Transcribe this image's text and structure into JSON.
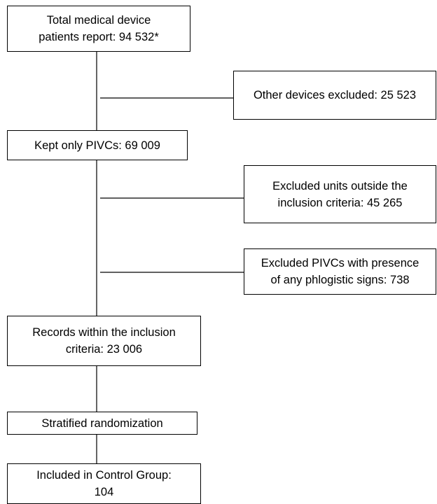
{
  "nodes": [
    {
      "lines": [
        "Total medical device",
        "patients report: 94 532*"
      ]
    },
    {
      "lines": [
        "Other devices excluded: 25 523"
      ]
    },
    {
      "lines": [
        "Kept only PIVCs: 69 009"
      ]
    },
    {
      "lines": [
        "Excluded units outside the",
        "inclusion criteria: 45 265"
      ]
    },
    {
      "lines": [
        "Excluded PIVCs with presence",
        "of any phlogistic signs: 738"
      ]
    },
    {
      "lines": [
        "Records within the inclusion",
        "criteria: 23 006"
      ]
    },
    {
      "lines": [
        "Stratified randomization"
      ]
    },
    {
      "lines": [
        "Included in Control Group:",
        "104"
      ]
    }
  ]
}
